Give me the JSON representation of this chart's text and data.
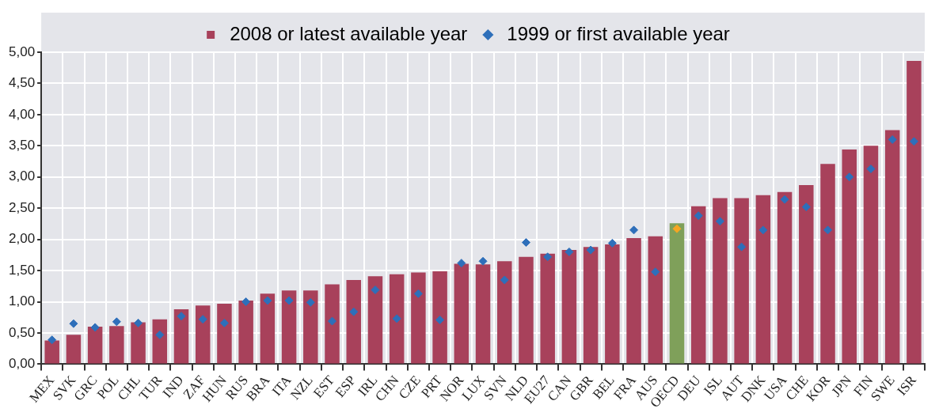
{
  "chart_data": {
    "type": "bar",
    "categories": [
      "MEX",
      "SVK",
      "GRC",
      "POL",
      "CHL",
      "TUR",
      "IND",
      "ZAF",
      "HUN",
      "RUS",
      "BRA",
      "ITA",
      "NZL",
      "EST",
      "ESP",
      "IRL",
      "CHN",
      "CZE",
      "PRT",
      "NOR",
      "LUX",
      "SVN",
      "NLD",
      "EU27",
      "CAN",
      "GBR",
      "BEL",
      "FRA",
      "AUS",
      "OECD",
      "DEU",
      "ISL",
      "AUT",
      "DNK",
      "USA",
      "CHE",
      "KOR",
      "JPN",
      "FIN",
      "SWE",
      "ISR"
    ],
    "series": [
      {
        "name": "2008 or latest available year",
        "color": "#a8415b",
        "colors": [
          "#a8415b",
          "#a8415b",
          "#a8415b",
          "#a8415b",
          "#a8415b",
          "#a8415b",
          "#a8415b",
          "#a8415b",
          "#a8415b",
          "#a8415b",
          "#a8415b",
          "#a8415b",
          "#a8415b",
          "#a8415b",
          "#a8415b",
          "#a8415b",
          "#a8415b",
          "#a8415b",
          "#a8415b",
          "#a8415b",
          "#a8415b",
          "#a8415b",
          "#a8415b",
          "#a8415b",
          "#a8415b",
          "#a8415b",
          "#a8415b",
          "#a8415b",
          "#a8415b",
          "#7fa05a",
          "#a8415b",
          "#a8415b",
          "#a8415b",
          "#a8415b",
          "#a8415b",
          "#a8415b",
          "#a8415b",
          "#a8415b",
          "#a8415b",
          "#a8415b",
          "#a8415b"
        ],
        "values": [
          0.38,
          0.47,
          0.6,
          0.61,
          0.67,
          0.72,
          0.88,
          0.94,
          0.97,
          1.02,
          1.13,
          1.18,
          1.18,
          1.28,
          1.35,
          1.41,
          1.44,
          1.47,
          1.49,
          1.61,
          1.6,
          1.65,
          1.72,
          1.77,
          1.83,
          1.88,
          1.92,
          2.02,
          2.05,
          2.26,
          2.53,
          2.66,
          2.66,
          2.71,
          2.76,
          2.87,
          3.21,
          3.44,
          3.5,
          3.75,
          4.86
        ]
      },
      {
        "name": "1999 or first available year",
        "type": "scatter",
        "marker": "diamond",
        "x": [
          "MEX",
          "SVK",
          "GRC",
          "POL",
          "CHL",
          "TUR",
          "IND",
          "ZAF",
          "HUN",
          "RUS",
          "BRA",
          "ITA",
          "NZL",
          "EST",
          "ESP",
          "IRL",
          "CHN",
          "CZE",
          "PRT",
          "NOR",
          "LUX",
          "SVN",
          "NLD",
          "EU27",
          "CAN",
          "GBR",
          "BEL",
          "FRA",
          "AUS",
          "OECD",
          "DEU",
          "ISL",
          "AUT",
          "DNK",
          "USA",
          "CHE",
          "KOR",
          "JPN",
          "FIN",
          "SWE",
          "ISR"
        ],
        "color": "#2e6fba",
        "colors": [
          "#2e6fba",
          "#2e6fba",
          "#2e6fba",
          "#2e6fba",
          "#2e6fba",
          "#2e6fba",
          "#2e6fba",
          "#2e6fba",
          "#2e6fba",
          "#2e6fba",
          "#2e6fba",
          "#2e6fba",
          "#2e6fba",
          "#2e6fba",
          "#2e6fba",
          "#2e6fba",
          "#2e6fba",
          "#2e6fba",
          "#2e6fba",
          "#2e6fba",
          "#2e6fba",
          "#2e6fba",
          "#2e6fba",
          "#2e6fba",
          "#2e6fba",
          "#2e6fba",
          "#2e6fba",
          "#2e6fba",
          "#2e6fba",
          "#f5a623",
          "#2e6fba",
          "#2e6fba",
          "#2e6fba",
          "#2e6fba",
          "#2e6fba",
          "#2e6fba",
          "#2e6fba",
          "#2e6fba",
          "#2e6fba",
          "#2e6fba",
          "#2e6fba"
        ],
        "values": [
          0.39,
          0.65,
          0.59,
          0.68,
          0.66,
          0.47,
          0.77,
          0.72,
          0.66,
          1.0,
          1.02,
          1.02,
          0.99,
          0.69,
          0.84,
          1.19,
          0.73,
          1.13,
          0.71,
          1.62,
          1.65,
          1.35,
          1.95,
          1.72,
          1.8,
          1.83,
          1.94,
          2.15,
          1.48,
          2.17,
          2.38,
          2.29,
          1.88,
          2.15,
          2.64,
          2.52,
          2.15,
          3.0,
          3.13,
          3.6,
          3.57
        ]
      }
    ],
    "ylim": [
      0,
      5
    ],
    "yticks": [
      {
        "value": 0,
        "label": "0,00"
      },
      {
        "value": 0.5,
        "label": "0,50"
      },
      {
        "value": 1,
        "label": "1,00"
      },
      {
        "value": 1.5,
        "label": "1,50"
      },
      {
        "value": 2,
        "label": "2,00"
      },
      {
        "value": 2.5,
        "label": "2,50"
      },
      {
        "value": 3,
        "label": "3,00"
      },
      {
        "value": 3.5,
        "label": "3,50"
      },
      {
        "value": 4,
        "label": "4,00"
      },
      {
        "value": 4.5,
        "label": "4,50"
      },
      {
        "value": 5,
        "label": "5,00"
      }
    ],
    "grid": true,
    "legend": "top"
  }
}
